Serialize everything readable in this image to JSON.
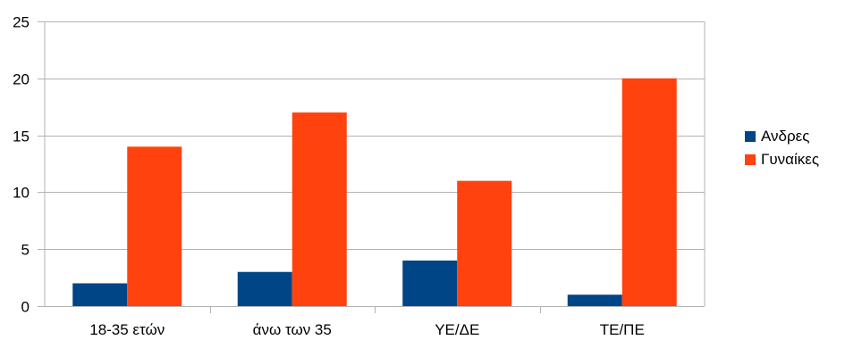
{
  "chart_data": {
    "type": "bar",
    "title": "",
    "xlabel": "",
    "ylabel": "",
    "categories": [
      "18-35 ετών",
      "άνω των 35",
      "ΥΕ/ΔΕ",
      "ΤΕ/ΠΕ"
    ],
    "series": [
      {
        "name": "Ανδρες",
        "color": "#004586",
        "values": [
          2,
          3,
          4,
          1
        ]
      },
      {
        "name": "Γυναίκες",
        "color": "#ff420e",
        "values": [
          14,
          17,
          11,
          20
        ]
      }
    ],
    "ylim": [
      0,
      25
    ],
    "yticks": [
      0,
      5,
      10,
      15,
      20,
      25
    ],
    "grid": true,
    "legend_position": "right"
  }
}
